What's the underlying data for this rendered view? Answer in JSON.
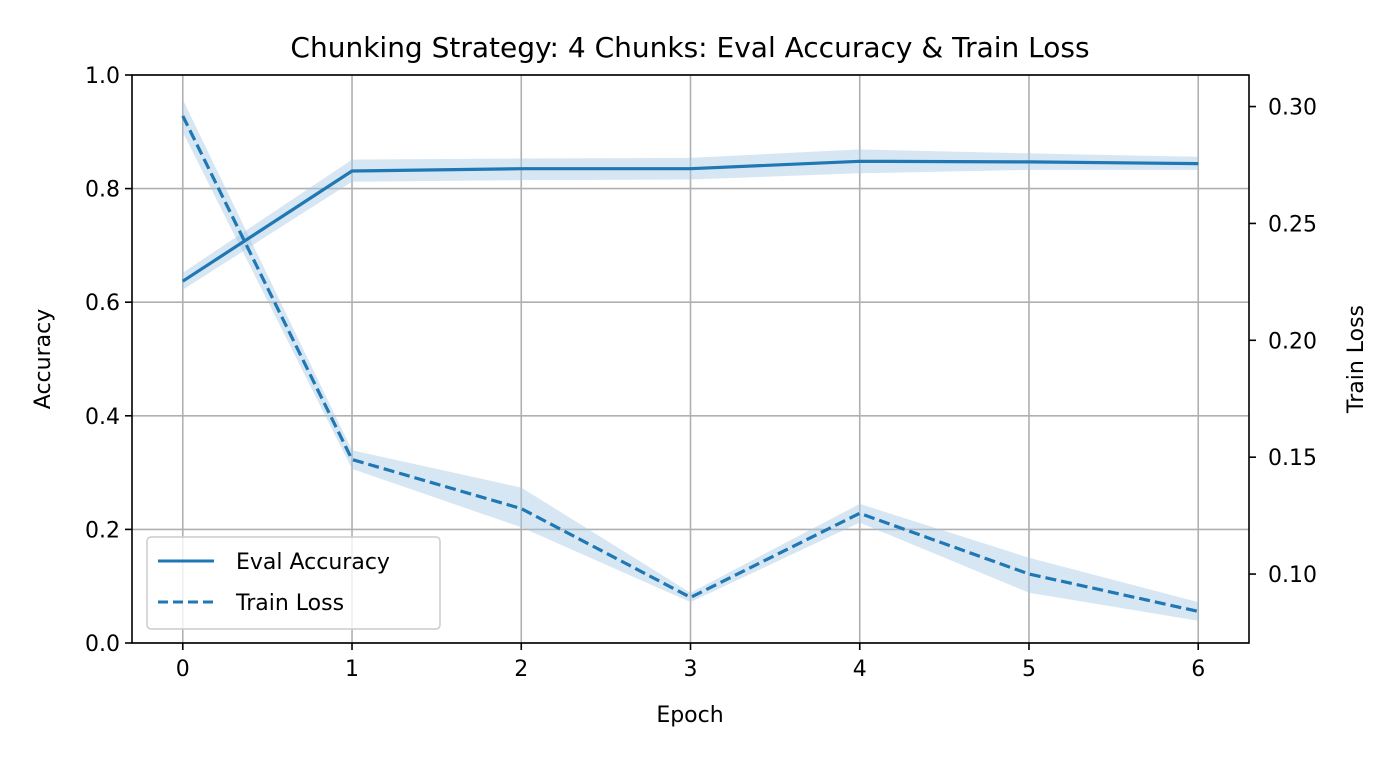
{
  "chart_data": {
    "type": "line",
    "title": "Chunking Strategy: 4 Chunks: Eval Accuracy & Train Loss",
    "xlabel": "Epoch",
    "ylabel_left": "Accuracy",
    "ylabel_right": "Train Loss",
    "x": [
      0,
      1,
      2,
      3,
      4,
      5,
      6
    ],
    "xlim": [
      -0.3,
      6.3
    ],
    "ylim_left": [
      0.0,
      1.0
    ],
    "ylim_right": [
      0.0705,
      0.3135
    ],
    "x_ticks": [
      "0",
      "1",
      "2",
      "3",
      "4",
      "5",
      "6"
    ],
    "y_ticks_left": [
      "0.0",
      "0.2",
      "0.4",
      "0.6",
      "0.8",
      "1.0"
    ],
    "y_ticks_right": [
      "0.10",
      "0.15",
      "0.20",
      "0.25",
      "0.30"
    ],
    "grid": true,
    "legend_position": "lower-left",
    "color": "#1f77b4",
    "band_color": "#a6c8e4",
    "series": [
      {
        "name": "Eval Accuracy",
        "axis": "left",
        "style": "solid",
        "values": [
          0.637,
          0.831,
          0.835,
          0.835,
          0.848,
          0.847,
          0.844
        ],
        "lower": [
          0.622,
          0.812,
          0.815,
          0.816,
          0.827,
          0.833,
          0.833
        ],
        "upper": [
          0.652,
          0.851,
          0.853,
          0.854,
          0.869,
          0.862,
          0.856
        ]
      },
      {
        "name": "Train Loss",
        "axis": "right",
        "style": "dashed",
        "values": [
          0.296,
          0.149,
          0.128,
          0.09,
          0.126,
          0.1,
          0.084
        ],
        "lower": [
          0.289,
          0.145,
          0.12,
          0.088,
          0.122,
          0.092,
          0.08
        ],
        "upper": [
          0.303,
          0.153,
          0.137,
          0.092,
          0.13,
          0.107,
          0.088
        ]
      }
    ]
  }
}
